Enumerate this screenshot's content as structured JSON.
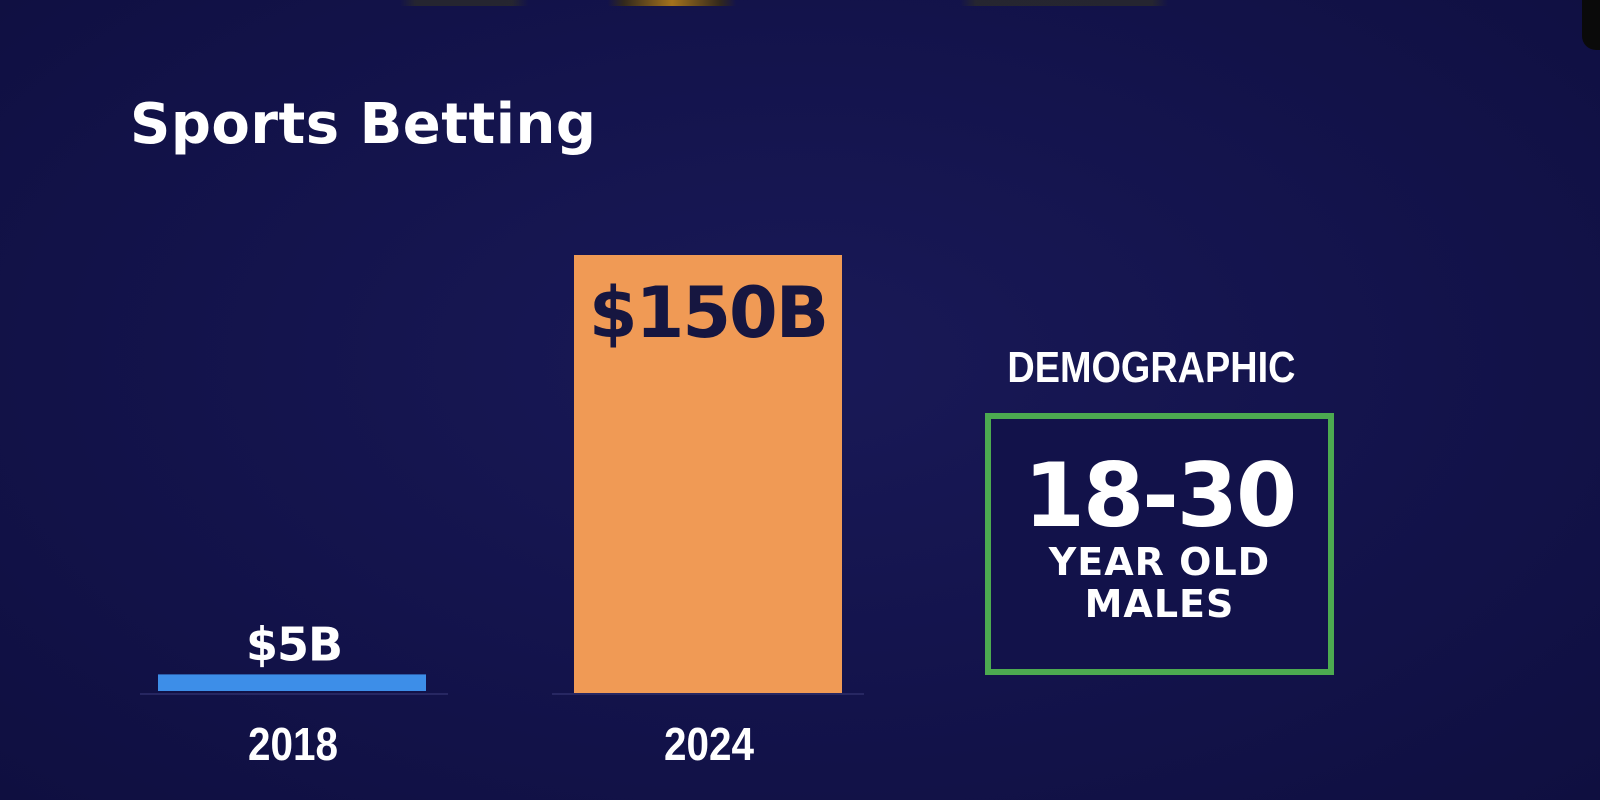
{
  "colors": {
    "background": "#13134b",
    "bar_2018": "#3d8ee8",
    "bar_2024": "#f09a55",
    "box_border": "#4caa50",
    "text": "#ffffff",
    "bar_label_dark": "#161640"
  },
  "demographic": {
    "heading": "DEMOGRAPHIC",
    "range": "18-30",
    "line1": "YEAR OLD",
    "line2": "MALES"
  },
  "chart_data": {
    "type": "bar",
    "title": "Sports Betting",
    "categories": [
      "2018",
      "2024"
    ],
    "values": [
      5,
      150
    ],
    "value_labels": [
      "$5B",
      "$150B"
    ],
    "unit": "billion USD",
    "ylim": [
      0,
      150
    ],
    "grid": false,
    "legend": "none"
  }
}
